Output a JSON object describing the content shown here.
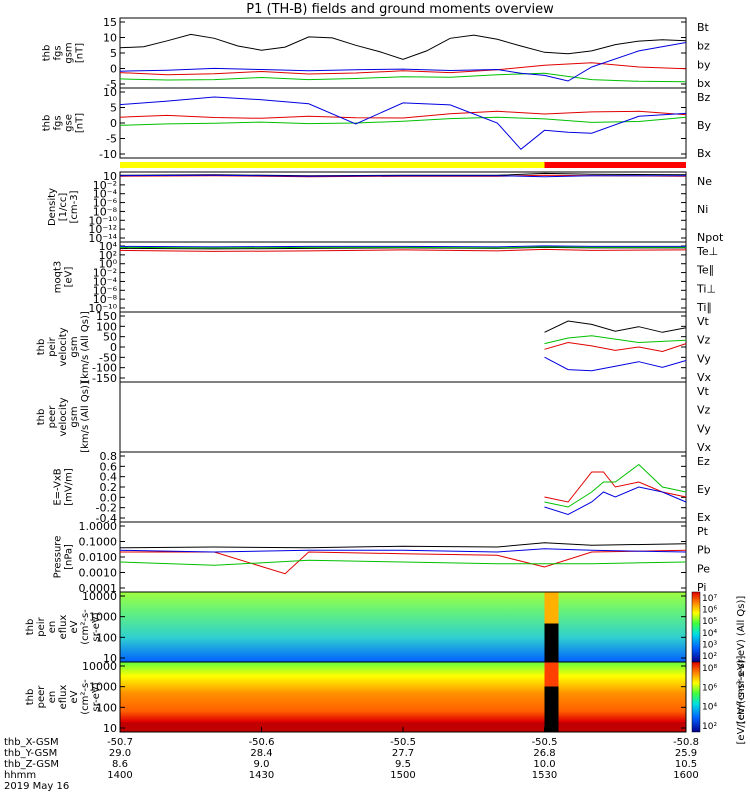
{
  "title": "P1 (TH-B) fields and ground moments overview",
  "chart_data": {
    "type": "line",
    "x_ticks": [
      "1400",
      "1430",
      "1500",
      "1530",
      "1600"
    ],
    "ephemeris": {
      "labels": [
        "thb_X-GSM",
        "thb_Y-GSM",
        "thb_Z-GSM",
        "hhmm",
        "2019 May 16"
      ],
      "rows": [
        [
          "-50.7",
          "-50.6",
          "-50.5",
          "-50.5",
          "-50.8"
        ],
        [
          "29.0",
          "28.4",
          "27.7",
          "26.8",
          "25.9"
        ],
        [
          "8.6",
          "9.0",
          "9.5",
          "10.0",
          "10.5"
        ],
        [
          "1400",
          "1430",
          "1500",
          "1530",
          "1600"
        ]
      ]
    },
    "panels": [
      {
        "id": "fgs-gsm",
        "ylabel": [
          "thb",
          "fgs",
          "gsm",
          "[nT]"
        ],
        "yticks": [
          "15",
          "10",
          "5",
          "0",
          "-5"
        ],
        "ylim": [
          -5,
          15
        ],
        "series": [
          {
            "name": "Bt",
            "color": "#000000",
            "x": [
              0,
              10,
              20,
              30,
              40,
              50,
              60,
              70,
              80,
              90,
              100,
              110,
              120,
              130,
              140,
              150,
              160,
              170,
              180,
              190,
              200,
              210,
              220,
              230,
              240
            ],
            "y": [
              6.5,
              6.8,
              8.5,
              10.3,
              9.2,
              7.0,
              5.8,
              6.7,
              9.6,
              9.3,
              7.2,
              5.4,
              3.2,
              5.6,
              9.2,
              10.1,
              8.9,
              7.0,
              5.2,
              4.8,
              5.6,
              7.4,
              8.4,
              8.8,
              8.5
            ]
          },
          {
            "name": "bz",
            "color": "#e00000",
            "x": [
              0,
              20,
              40,
              60,
              80,
              100,
              120,
              140,
              160,
              180,
              200,
              220,
              240
            ],
            "y": [
              -0.6,
              -1.2,
              -0.9,
              -0.3,
              -1.0,
              -0.7,
              -0.1,
              -0.6,
              0.2,
              1.5,
              2.2,
              1.0,
              0.5
            ]
          },
          {
            "name": "by",
            "color": "#00c000",
            "x": [
              0,
              20,
              40,
              60,
              80,
              100,
              120,
              140,
              160,
              180,
              200,
              220,
              240
            ],
            "y": [
              -2.4,
              -2.7,
              -2.6,
              -2.0,
              -2.6,
              -2.3,
              -1.8,
              -1.9,
              -1.2,
              -0.8,
              -2.6,
              -3.1,
              -3.2
            ]
          },
          {
            "name": "bx",
            "color": "#0000e0",
            "x": [
              0,
              20,
              40,
              60,
              80,
              100,
              120,
              140,
              160,
              170,
              180,
              190,
              200,
              220,
              240
            ],
            "y": [
              -0.2,
              0.1,
              0.6,
              0.3,
              -0.1,
              0.2,
              0.4,
              0.0,
              0.3,
              -0.8,
              -1.4,
              -3.0,
              1.0,
              5.6,
              8.0
            ]
          }
        ]
      },
      {
        "id": "fgs-gse",
        "ylabel": [
          "thb",
          "fgs",
          "gse",
          "[nT]"
        ],
        "yticks": [
          "10",
          "5",
          "0",
          "-5",
          "-10"
        ],
        "ylim": [
          -13,
          11
        ],
        "series": [
          {
            "name": "Bz",
            "color": "#e00000",
            "x": [
              0,
              20,
              40,
              60,
              80,
              100,
              120,
              140,
              160,
              180,
              200,
              220,
              240
            ],
            "y": [
              1.0,
              1.6,
              0.9,
              0.6,
              1.3,
              0.8,
              0.7,
              2.2,
              3.0,
              2.1,
              2.8,
              3.0,
              1.8
            ]
          },
          {
            "name": "By",
            "color": "#00c000",
            "x": [
              0,
              20,
              40,
              60,
              80,
              100,
              120,
              140,
              160,
              180,
              200,
              220,
              240
            ],
            "y": [
              -1.8,
              -1.3,
              -1.1,
              -0.7,
              -1.2,
              -1.0,
              -0.4,
              0.5,
              1.0,
              0.4,
              -0.8,
              -0.5,
              1.0
            ]
          },
          {
            "name": "Bx",
            "color": "#0000e0",
            "x": [
              0,
              20,
              40,
              60,
              80,
              100,
              120,
              140,
              160,
              170,
              180,
              190,
              200,
              220,
              240
            ],
            "y": [
              5.3,
              6.5,
              7.9,
              7.0,
              5.6,
              -1.3,
              5.9,
              5.2,
              -1.0,
              -10.0,
              -3.5,
              -4.2,
              -4.5,
              1.3,
              2.3
            ]
          }
        ]
      },
      {
        "id": "density",
        "ylabel": [
          "Density",
          "[1/cc]",
          "[cm-3]"
        ],
        "yticks": [
          "10",
          "10⁻²",
          "10⁻⁴",
          "10⁻⁶",
          "10⁻⁸",
          "10⁻¹⁰",
          "10⁻¹²",
          "10⁻¹⁴"
        ],
        "log": true,
        "ylim": [
          -14,
          1
        ],
        "series": [
          {
            "name": "Ne",
            "color": "#e00000",
            "x": [
              0,
              40,
              80,
              120,
              160,
              180,
              200,
              240
            ],
            "y": [
              0.1,
              0.2,
              0.0,
              0.1,
              0.1,
              0.3,
              0.2,
              0.1
            ]
          },
          {
            "name": "Ni",
            "color": "#000000",
            "x": [
              0,
              40,
              80,
              120,
              160,
              180,
              200,
              240
            ],
            "y": [
              0.3,
              0.4,
              0.2,
              0.3,
              0.3,
              0.7,
              0.5,
              0.4
            ]
          },
          {
            "name": "Npot",
            "color": "#0000e0",
            "x": [
              0,
              40,
              80,
              120,
              160,
              180,
              200,
              240
            ],
            "y": [
              0.2,
              0.3,
              0.1,
              0.2,
              0.2,
              0.0,
              0.2,
              0.2
            ]
          }
        ]
      },
      {
        "id": "temperature",
        "ylabel": [
          "moqt3",
          "[eV]"
        ],
        "yticks": [
          "10⁴",
          "10²",
          "10⁰",
          "10⁻²",
          "10⁻⁴",
          "10⁻⁶",
          "10⁻⁸",
          "10⁻¹⁰"
        ],
        "log": true,
        "ylim": [
          -10,
          4.2
        ],
        "series": [
          {
            "name": "Te⊥",
            "color": "#e00000",
            "x": [
              0,
              40,
              80,
              120,
              160,
              180,
              200,
              240
            ],
            "y": [
              2.5,
              2.3,
              2.4,
              2.6,
              2.4,
              2.7,
              2.5,
              2.6
            ]
          },
          {
            "name": "Te∥",
            "color": "#000000",
            "x": [
              0,
              40,
              80,
              120,
              160,
              180,
              200,
              240
            ],
            "y": [
              2.9,
              2.8,
              2.9,
              3.0,
              2.9,
              3.1,
              3.0,
              3.0
            ]
          },
          {
            "name": "Ti⊥",
            "color": "#0000e0",
            "x": [
              0,
              40,
              80,
              120,
              160,
              180,
              200,
              240
            ],
            "y": [
              3.3,
              3.2,
              3.3,
              3.3,
              3.2,
              3.4,
              3.3,
              3.3
            ]
          },
          {
            "name": "Ti∥",
            "color": "#00c000",
            "x": [
              0,
              40,
              80,
              120,
              160,
              180,
              200,
              240
            ],
            "y": [
              3.1,
              3.0,
              3.1,
              3.1,
              3.0,
              3.2,
              3.1,
              3.1
            ]
          }
        ]
      },
      {
        "id": "peir-velocity",
        "ylabel": [
          "thb",
          "peir",
          "velocity",
          "gsm",
          "[km/s (All Qs)]"
        ],
        "yticks": [
          "150",
          "100",
          "50",
          "0",
          "-50",
          "-100",
          "-150"
        ],
        "ylim": [
          -150,
          160
        ],
        "series": [
          {
            "name": "Vt",
            "color": "#000000",
            "x": [
              180,
              190,
              200,
              210,
              220,
              230,
              240
            ],
            "y": [
              70,
              120,
              105,
              75,
              95,
              70,
              90
            ]
          },
          {
            "name": "Vz",
            "color": "#e00000",
            "x": [
              180,
              190,
              200,
              210,
              220,
              230,
              240
            ],
            "y": [
              -5,
              25,
              10,
              -10,
              5,
              -15,
              20
            ]
          },
          {
            "name": "Vy",
            "color": "#00c000",
            "x": [
              180,
              190,
              200,
              210,
              220,
              230,
              240
            ],
            "y": [
              20,
              45,
              55,
              40,
              25,
              30,
              35
            ]
          },
          {
            "name": "Vx",
            "color": "#0000e0",
            "x": [
              180,
              190,
              200,
              210,
              220,
              230,
              240
            ],
            "y": [
              -40,
              -95,
              -100,
              -80,
              -60,
              -85,
              -55
            ]
          }
        ]
      },
      {
        "id": "peer-velocity",
        "ylabel": [
          "thb",
          "peer",
          "velocity",
          "gsm",
          "[km/s (All Qs)]"
        ],
        "yticks": [],
        "ylim": [
          0,
          1
        ],
        "series": [
          {
            "name": "Vt",
            "color": "#000000",
            "x": [],
            "y": []
          },
          {
            "name": "Vz",
            "color": "#e00000",
            "x": [],
            "y": []
          },
          {
            "name": "Vy",
            "color": "#00c000",
            "x": [],
            "y": []
          },
          {
            "name": "Vx",
            "color": "#0000e0",
            "x": [],
            "y": []
          }
        ]
      },
      {
        "id": "efield",
        "ylabel": [
          "E=-VxB",
          "[mV/m]"
        ],
        "yticks": [
          "0.8",
          "0.6",
          "0.4",
          "0.2",
          "0.0",
          "-0.2",
          "-0.4"
        ],
        "ylim": [
          -0.5,
          0.9
        ],
        "series": [
          {
            "name": "Ez",
            "color": "#e00000",
            "x": [
              180,
              190,
              200,
              205,
              210,
              220,
              230,
              240
            ],
            "y": [
              0.0,
              -0.1,
              0.5,
              0.5,
              0.2,
              0.3,
              0.1,
              0.0
            ]
          },
          {
            "name": "Ey",
            "color": "#00c000",
            "x": [
              180,
              190,
              200,
              205,
              210,
              220,
              230,
              240
            ],
            "y": [
              -0.1,
              -0.2,
              0.1,
              0.3,
              0.3,
              0.65,
              0.2,
              0.1
            ]
          },
          {
            "name": "Ex",
            "color": "#0000e0",
            "x": [
              180,
              190,
              200,
              205,
              210,
              220,
              230,
              240
            ],
            "y": [
              -0.2,
              -0.35,
              -0.1,
              0.1,
              0.0,
              0.2,
              0.1,
              -0.1
            ]
          }
        ]
      },
      {
        "id": "pressure",
        "ylabel": [
          "Pressure",
          "[nPa]"
        ],
        "yticks": [
          "1.0000",
          "0.1000",
          "0.0100",
          "0.0010",
          "0.0001"
        ],
        "log": true,
        "ylim": [
          -4,
          0.2
        ],
        "series": [
          {
            "name": "Pt",
            "color": "#000000",
            "x": [
              0,
              40,
              80,
              120,
              160,
              180,
              200,
              240
            ],
            "y": [
              -1.35,
              -1.3,
              -1.35,
              -1.25,
              -1.3,
              -1.05,
              -1.2,
              -1.1
            ]
          },
          {
            "name": "Pb",
            "color": "#e00000",
            "x": [
              0,
              40,
              70,
              80,
              120,
              160,
              180,
              200,
              240
            ],
            "y": [
              -1.6,
              -1.6,
              -2.9,
              -1.6,
              -1.7,
              -1.8,
              -2.5,
              -1.6,
              -1.5
            ]
          },
          {
            "name": "Pe",
            "color": "#00c000",
            "x": [
              0,
              40,
              80,
              120,
              160,
              180,
              200,
              240
            ],
            "y": [
              -2.2,
              -2.4,
              -2.1,
              -2.2,
              -2.3,
              -2.3,
              -2.3,
              -2.2
            ]
          },
          {
            "name": "Pi",
            "color": "#0000e0",
            "x": [
              0,
              40,
              80,
              120,
              160,
              180,
              200,
              240
            ],
            "y": [
              -1.5,
              -1.6,
              -1.5,
              -1.5,
              -1.6,
              -1.4,
              -1.5,
              -1.6
            ]
          }
        ]
      },
      {
        "id": "peir-spectrogram",
        "type": "heatmap",
        "ylabel": [
          "thb",
          "peir",
          "en",
          "eflux",
          "eV",
          "(cm²-s-",
          "sr-eV)"
        ],
        "yticks": [
          "10000",
          "1000",
          "100",
          "10"
        ],
        "colorbar": {
          "ticks": [
            "10⁷",
            "10⁶",
            "10⁵",
            "10⁴",
            "10³",
            "10²"
          ],
          "label": "[eV/(cm²-s-sr-eV) (All Qs)]"
        }
      },
      {
        "id": "peer-spectrogram",
        "type": "heatmap",
        "ylabel": [
          "thb",
          "peer",
          "en",
          "eflux",
          "eV",
          "(cm²-s-",
          "sr-eV)"
        ],
        "yticks": [
          "10000",
          "1000",
          "100",
          "10"
        ],
        "colorbar": {
          "ticks": [
            "10⁸",
            "10⁶",
            "10⁴",
            "10²"
          ],
          "label": "[eV/(cm²-s-sr-eV)]"
        }
      }
    ]
  },
  "colors": {
    "mode_bar_slow": "#ffff00",
    "mode_bar_fast": "#ff0000"
  }
}
